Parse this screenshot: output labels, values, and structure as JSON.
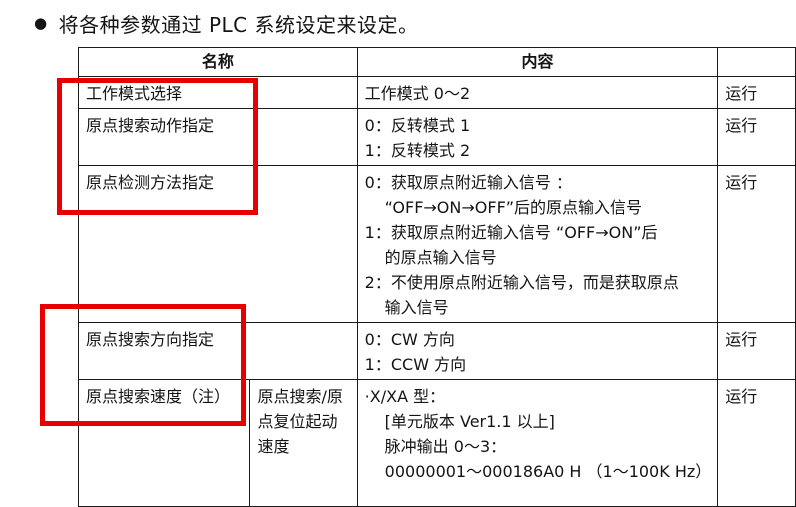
{
  "title": {
    "bullet": "●",
    "text": "将各种参数通过 PLC 系统设定来设定。"
  },
  "table": {
    "header": {
      "name": "名称",
      "content": "内容",
      "status": ""
    },
    "rows": [
      {
        "name": "工作模式选择",
        "lines": [
          {
            "text": "工作模式 0～2",
            "indent": false
          }
        ],
        "status": "运行"
      },
      {
        "name": "原点搜索动作指定",
        "lines": [
          {
            "text": "0：反转模式 1",
            "indent": false
          },
          {
            "text": "1：反转模式 2",
            "indent": false
          }
        ],
        "status": "运行"
      },
      {
        "name": "原点检测方法指定",
        "lines": [
          {
            "text": "0：获取原点附近输入信号 ：",
            "indent": false
          },
          {
            "text": "“OFF→ON→OFF”后的原点输入信号",
            "indent": true
          },
          {
            "text": "1：获取原点附近输入信号 “OFF→ON”后",
            "indent": false
          },
          {
            "text": "的原点输入信号",
            "indent": true
          },
          {
            "text": "2：不使用原点附近输入信号，而是获取原点",
            "indent": false
          },
          {
            "text": "输入信号",
            "indent": true
          }
        ],
        "status": "运行"
      },
      {
        "name": "原点搜索方向指定",
        "lines": [
          {
            "text": "0：CW 方向",
            "indent": false
          },
          {
            "text": "1：CCW 方向",
            "indent": false
          }
        ],
        "status": "运行"
      },
      {
        "name": "原点搜索速度（注）",
        "subname": "原点搜索/原点复位起动速度",
        "lines": [
          {
            "text": "·X/XA 型：",
            "indent": false
          },
          {
            "text": "[单元版本 Ver1.1 以上]",
            "indent": true
          },
          {
            "text": "脉冲输出 0～3：",
            "indent": true
          },
          {
            "text": "00000001～000186A0 H （1～100K Hz）",
            "indent": true
          }
        ],
        "status": "运行"
      }
    ]
  },
  "annotations": {
    "color": "#e60000"
  }
}
